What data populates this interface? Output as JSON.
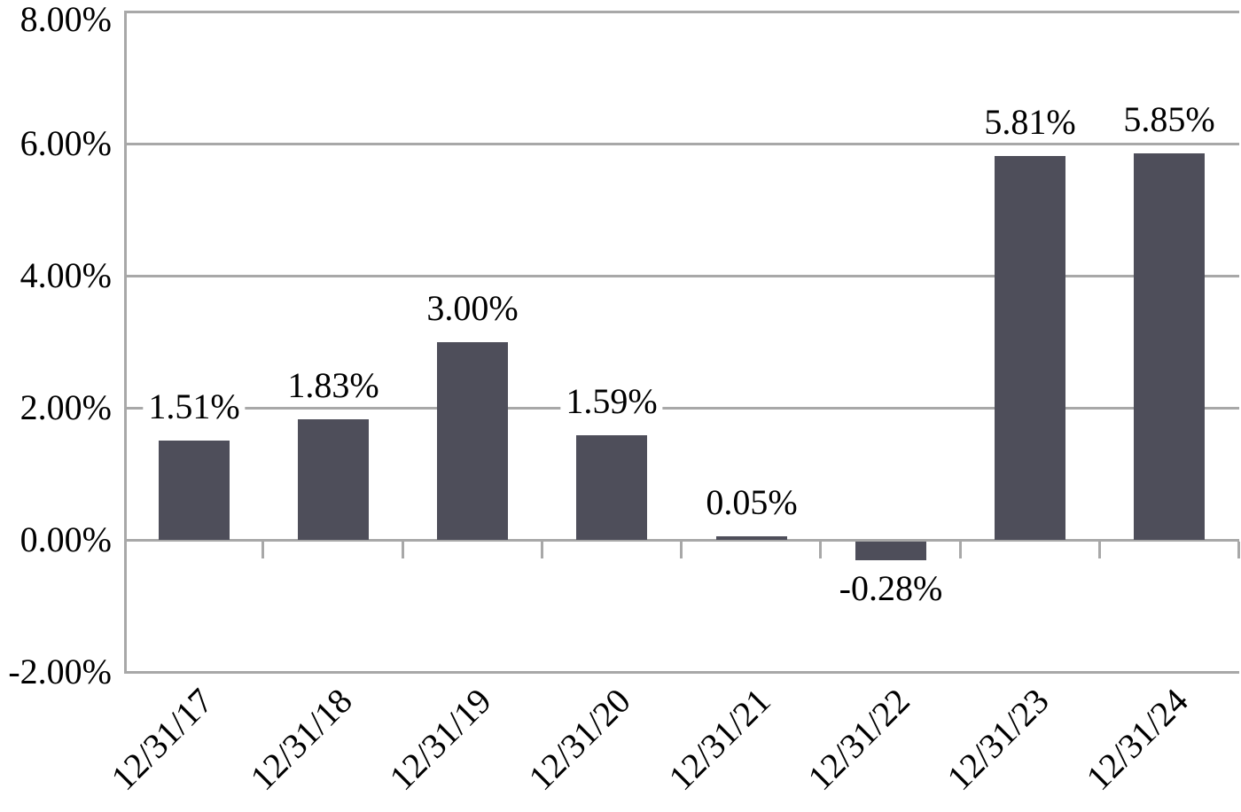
{
  "chart_data": {
    "type": "bar",
    "title": "",
    "xlabel": "",
    "ylabel": "",
    "categories": [
      "12/31/17",
      "12/31/18",
      "12/31/19",
      "12/31/20",
      "12/31/21",
      "12/31/22",
      "12/31/23",
      "12/31/24"
    ],
    "values": [
      1.51,
      1.83,
      3.0,
      1.59,
      0.05,
      -0.28,
      5.81,
      5.85
    ],
    "bar_labels": [
      "1.51%",
      "1.83%",
      "3.00%",
      "1.59%",
      "0.05%",
      "-0.28%",
      "5.81%",
      "5.85%"
    ],
    "y_ticks": [
      {
        "value": 8,
        "label": "8.00%"
      },
      {
        "value": 6,
        "label": "6.00%"
      },
      {
        "value": 4,
        "label": "4.00%"
      },
      {
        "value": 2,
        "label": "2.00%"
      },
      {
        "value": 0,
        "label": "0.00%"
      },
      {
        "value": -2,
        "label": "-2.00%"
      }
    ],
    "ylim": [
      -2,
      8
    ],
    "grid": true,
    "legend": "none",
    "colors": {
      "bar": "#4e4e5a",
      "line": "#a8a8a8",
      "text": "#000000",
      "background": "#ffffff"
    }
  }
}
